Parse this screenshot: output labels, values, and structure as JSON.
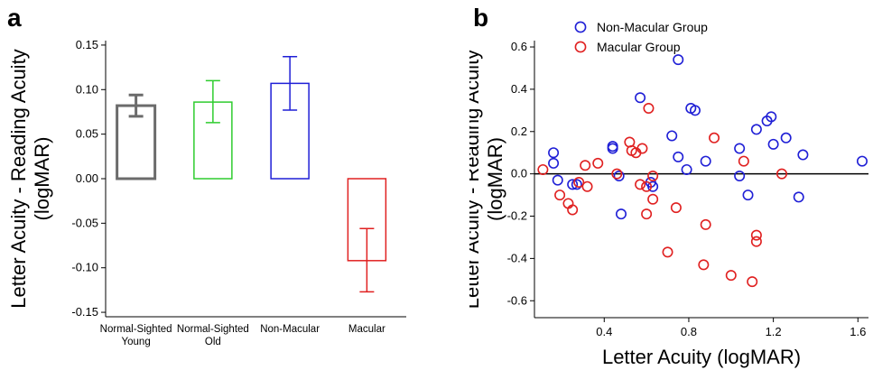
{
  "chart_data": [
    {
      "panel_label": "a",
      "type": "bar",
      "categories": [
        "Normal-Sighted\nYoung",
        "Normal-Sighted\nOld",
        "Non-Macular",
        "Macular"
      ],
      "values": [
        0.082,
        0.086,
        0.107,
        -0.092
      ],
      "error_low": [
        0.07,
        0.063,
        0.077,
        -0.127
      ],
      "error_high": [
        0.094,
        0.11,
        0.137,
        -0.056
      ],
      "colors": [
        "#6b6b6b",
        "#2ecc2e",
        "#1f1fd6",
        "#e02020"
      ],
      "title": "",
      "xlabel": "",
      "ylabel": "Letter Acuity - Reading Acuity\n(logMAR)",
      "ylim": [
        -0.155,
        0.155
      ],
      "yticks": [
        -0.15,
        -0.1,
        -0.05,
        0.0,
        0.05,
        0.1,
        0.15
      ],
      "ytick_labels": [
        "-0.15",
        "-0.10",
        "-0.05",
        "0.00",
        "0.05",
        "0.10",
        "0.15"
      ],
      "grid": false
    },
    {
      "panel_label": "b",
      "type": "scatter",
      "title": "",
      "xlabel": "Letter Acuity (logMAR)",
      "ylabel": "Letter Acuity - Reading Acuity\n(logMAR)",
      "xlim": [
        0.07,
        1.65
      ],
      "ylim": [
        -0.68,
        0.63
      ],
      "xticks": [
        0.4,
        0.8,
        1.2,
        1.6
      ],
      "xtick_labels": [
        "0.4",
        "0.8",
        "1.2",
        "1.6"
      ],
      "yticks": [
        -0.6,
        -0.4,
        -0.2,
        0.0,
        0.2,
        0.4,
        0.6
      ],
      "ytick_labels": [
        "-0.6",
        "-0.4",
        "-0.2",
        "0.0",
        "0.2",
        "0.4",
        "0.6"
      ],
      "reference_line_y": 0,
      "legend_position": "top-left",
      "grid": false,
      "series": [
        {
          "name": "Non-Macular Group",
          "color": "#1f1fd6",
          "points": [
            [
              0.16,
              0.1
            ],
            [
              0.16,
              0.05
            ],
            [
              0.18,
              -0.03
            ],
            [
              0.25,
              -0.05
            ],
            [
              0.27,
              -0.05
            ],
            [
              0.44,
              0.13
            ],
            [
              0.44,
              0.12
            ],
            [
              0.47,
              -0.01
            ],
            [
              0.48,
              -0.19
            ],
            [
              0.57,
              0.36
            ],
            [
              0.62,
              -0.04
            ],
            [
              0.63,
              -0.06
            ],
            [
              0.72,
              0.18
            ],
            [
              0.75,
              0.54
            ],
            [
              0.75,
              0.08
            ],
            [
              0.79,
              0.02
            ],
            [
              0.81,
              0.31
            ],
            [
              0.83,
              0.3
            ],
            [
              0.88,
              0.06
            ],
            [
              1.04,
              0.12
            ],
            [
              1.04,
              -0.01
            ],
            [
              1.08,
              -0.1
            ],
            [
              1.12,
              0.21
            ],
            [
              1.17,
              0.25
            ],
            [
              1.19,
              0.27
            ],
            [
              1.2,
              0.14
            ],
            [
              1.26,
              0.17
            ],
            [
              1.32,
              -0.11
            ],
            [
              1.34,
              0.09
            ],
            [
              1.62,
              0.06
            ]
          ]
        },
        {
          "name": "Macular Group",
          "color": "#e02020",
          "points": [
            [
              0.11,
              0.02
            ],
            [
              0.19,
              -0.1
            ],
            [
              0.23,
              -0.14
            ],
            [
              0.25,
              -0.17
            ],
            [
              0.28,
              -0.04
            ],
            [
              0.31,
              0.04
            ],
            [
              0.32,
              -0.06
            ],
            [
              0.37,
              0.05
            ],
            [
              0.46,
              0.0
            ],
            [
              0.52,
              0.15
            ],
            [
              0.53,
              0.11
            ],
            [
              0.55,
              0.1
            ],
            [
              0.57,
              -0.05
            ],
            [
              0.58,
              0.12
            ],
            [
              0.6,
              -0.19
            ],
            [
              0.6,
              -0.06
            ],
            [
              0.61,
              0.31
            ],
            [
              0.63,
              -0.01
            ],
            [
              0.63,
              -0.12
            ],
            [
              0.7,
              -0.37
            ],
            [
              0.74,
              -0.16
            ],
            [
              0.87,
              -0.43
            ],
            [
              0.88,
              -0.24
            ],
            [
              0.92,
              0.17
            ],
            [
              1.0,
              -0.48
            ],
            [
              1.06,
              0.06
            ],
            [
              1.1,
              -0.51
            ],
            [
              1.12,
              -0.29
            ],
            [
              1.12,
              -0.32
            ],
            [
              1.24,
              0.0
            ]
          ]
        }
      ]
    }
  ]
}
